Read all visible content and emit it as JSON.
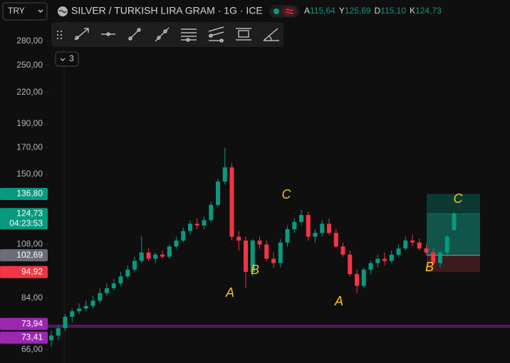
{
  "header": {
    "currency": "TRY",
    "title": "SILVER / TURKISH LIRA GRAM · 1G · ICE",
    "ohlc": [
      {
        "label": "A",
        "value": "115,64"
      },
      {
        "label": "Y",
        "value": "125,69"
      },
      {
        "label": "D",
        "value": "115,10"
      },
      {
        "label": "K",
        "value": "124,73"
      }
    ]
  },
  "toolbar": {
    "collapsed_count": "3"
  },
  "chart_data": {
    "type": "candlestick",
    "log_scale": true,
    "up_color": "#089981",
    "down_color": "#f23645",
    "open": [
      69,
      70.5,
      73,
      77,
      79,
      80,
      81,
      83,
      86,
      88,
      90,
      93,
      96,
      100,
      104,
      101,
      103,
      102,
      107,
      110,
      115,
      119,
      118,
      121,
      130,
      145,
      155,
      112,
      110,
      95,
      110,
      108,
      101,
      99,
      109,
      116,
      120,
      124,
      112,
      114,
      119,
      114,
      107,
      103,
      94,
      89,
      96,
      99,
      101,
      100,
      103,
      106,
      110,
      109,
      106,
      104,
      99,
      104,
      115.64
    ],
    "high": [
      72,
      74,
      78,
      80,
      82,
      83,
      85,
      88,
      90,
      92,
      95,
      98,
      102,
      112,
      106,
      104,
      105,
      108,
      112,
      117,
      121,
      122,
      123,
      132,
      147,
      170,
      158,
      115,
      112,
      111,
      112,
      110,
      104,
      111,
      118,
      122,
      127,
      126,
      116,
      121,
      122,
      116,
      109,
      105,
      96,
      97,
      100,
      103,
      104,
      105,
      108,
      112,
      113,
      111,
      108,
      106,
      105,
      113,
      125.69
    ],
    "low": [
      67,
      69,
      72,
      75,
      78,
      79,
      80,
      82,
      85,
      87,
      89,
      92,
      95,
      99,
      100,
      99,
      101,
      101,
      106,
      109,
      113,
      116,
      116,
      120,
      129,
      143,
      110,
      105,
      88,
      93,
      106,
      100,
      97,
      97,
      107,
      114,
      118,
      110,
      109,
      112,
      113,
      106,
      102,
      93,
      86,
      88,
      94,
      97,
      98,
      99,
      102,
      105,
      107,
      105,
      103,
      98,
      97,
      102,
      115.1
    ],
    "close": [
      70.5,
      73,
      77,
      79,
      80,
      81,
      83,
      86,
      88,
      90,
      93,
      96,
      100,
      104,
      101,
      103,
      102,
      107,
      110,
      115,
      119,
      118,
      121,
      130,
      145,
      155,
      112,
      110,
      95,
      110,
      108,
      101,
      99,
      109,
      116,
      120,
      124,
      112,
      114,
      119,
      114,
      107,
      103,
      94,
      89,
      96,
      99,
      101,
      100,
      103,
      106,
      110,
      109,
      106,
      104,
      99,
      104,
      112,
      124.73
    ],
    "ylim": [
      62,
      307
    ],
    "yticks": [
      {
        "value": 66,
        "label": "66,00"
      },
      {
        "value": 84,
        "label": "84,00"
      },
      {
        "value": 108,
        "label": "108,00"
      },
      {
        "value": 150,
        "label": "150,00"
      },
      {
        "value": 170,
        "label": "170,00"
      },
      {
        "value": 190,
        "label": "190,00"
      },
      {
        "value": 220,
        "label": "220,00"
      },
      {
        "value": 250,
        "label": "250,00"
      },
      {
        "value": 280,
        "label": "280,00"
      }
    ],
    "price_labels": [
      {
        "value": 136.8,
        "label": "136,80",
        "color": "#089981"
      },
      {
        "value": 124.73,
        "label": "124,73",
        "countdown": "04:23:53",
        "color": "#089981"
      },
      {
        "value": 102.69,
        "label": "102,69",
        "color": "#6a6d78"
      },
      {
        "value": 94.92,
        "label": "94,92",
        "color": "#f23645"
      },
      {
        "value": 73.94,
        "label": "73,94",
        "color": "#9c27b0"
      },
      {
        "value": 73.41,
        "label": "73,41",
        "color": "#9c27b0"
      }
    ],
    "annotations": [
      "A",
      "B",
      "C",
      "A",
      "B",
      "C"
    ]
  }
}
